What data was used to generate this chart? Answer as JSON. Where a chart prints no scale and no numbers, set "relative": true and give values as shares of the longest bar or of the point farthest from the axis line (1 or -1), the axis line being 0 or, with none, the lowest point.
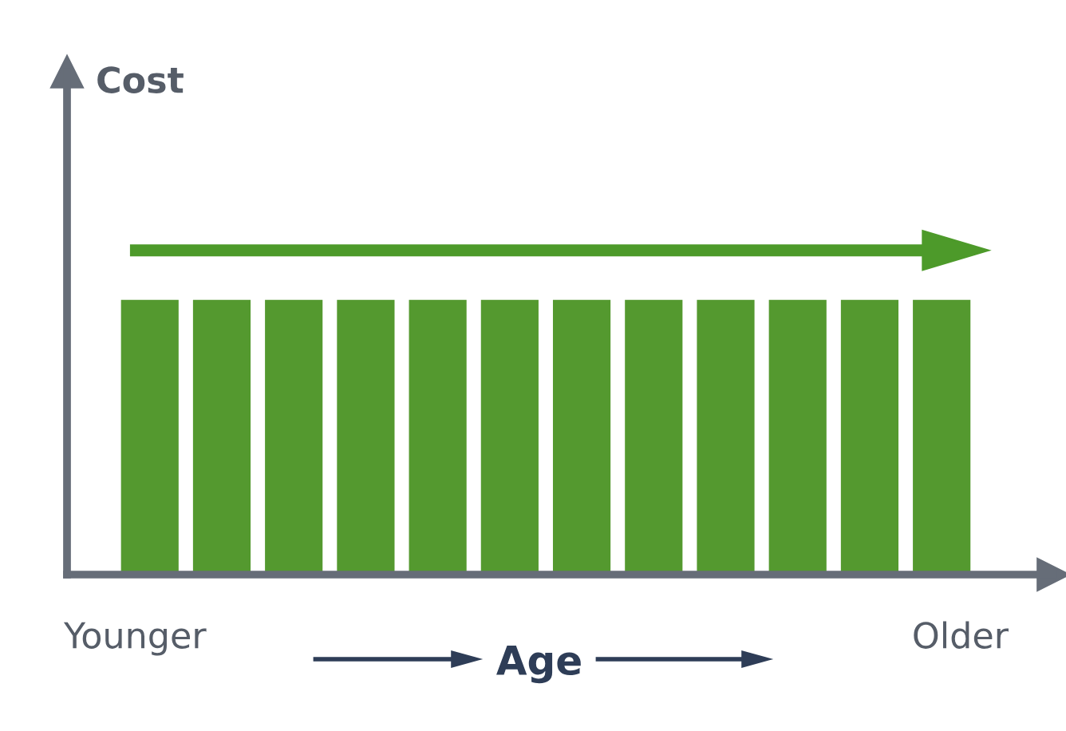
{
  "chart_data": {
    "type": "bar",
    "relative": true,
    "categories": [
      null,
      null,
      null,
      null,
      null,
      null,
      null,
      null,
      null,
      null,
      null,
      null
    ],
    "values": [
      1,
      1,
      1,
      1,
      1,
      1,
      1,
      1,
      1,
      1,
      1,
      1
    ],
    "color": "#54992f",
    "xlabel": "Age",
    "annotations": [
      "Cost",
      "Younger",
      "Older"
    ],
    "grid": false,
    "legend": false
  }
}
